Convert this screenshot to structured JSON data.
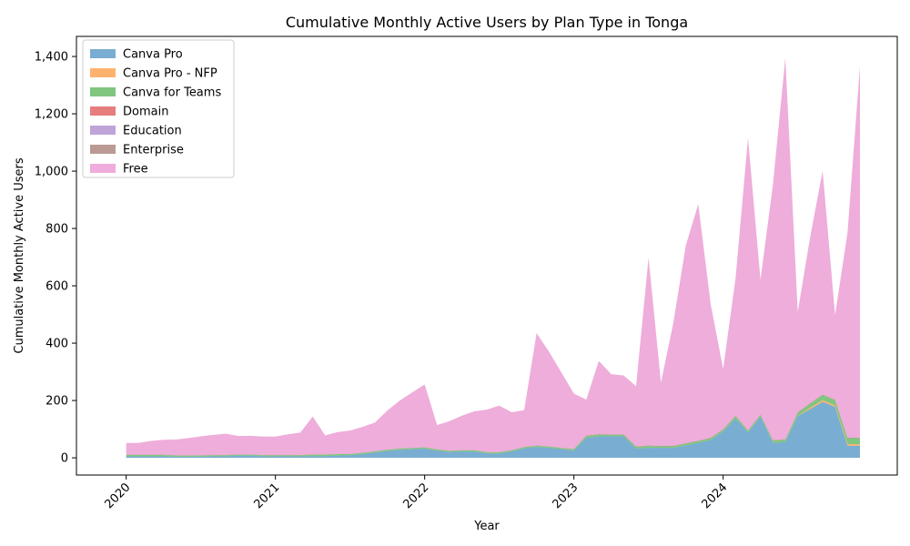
{
  "chart_data": {
    "type": "area",
    "stacked": true,
    "title": "Cumulative Monthly Active Users by Plan Type in Tonga",
    "xlabel": "Year",
    "ylabel": "Cumulative Monthly Active Users",
    "xlim": [
      "2019-09",
      "2025-03"
    ],
    "ylim": [
      -60,
      1470
    ],
    "xticks": [
      "2020",
      "2021",
      "2022",
      "2023",
      "2024"
    ],
    "yticks": [
      0,
      200,
      400,
      600,
      800,
      1000,
      1200,
      1400
    ],
    "ytick_labels": [
      "0",
      "200",
      "400",
      "600",
      "800",
      "1,000",
      "1,200",
      "1,400"
    ],
    "legend_position": "upper-left",
    "grid": false,
    "x": [
      "2020-01",
      "2020-02",
      "2020-03",
      "2020-04",
      "2020-05",
      "2020-06",
      "2020-07",
      "2020-08",
      "2020-09",
      "2020-10",
      "2020-11",
      "2020-12",
      "2021-01",
      "2021-02",
      "2021-03",
      "2021-04",
      "2021-05",
      "2021-06",
      "2021-07",
      "2021-08",
      "2021-09",
      "2021-10",
      "2021-11",
      "2021-12",
      "2022-01",
      "2022-02",
      "2022-03",
      "2022-04",
      "2022-05",
      "2022-06",
      "2022-07",
      "2022-08",
      "2022-09",
      "2022-10",
      "2022-11",
      "2022-12",
      "2023-01",
      "2023-02",
      "2023-03",
      "2023-04",
      "2023-05",
      "2023-06",
      "2023-07",
      "2023-08",
      "2023-09",
      "2023-10",
      "2023-11",
      "2023-12",
      "2024-01",
      "2024-02",
      "2024-03",
      "2024-04",
      "2024-05",
      "2024-06",
      "2024-07",
      "2024-08",
      "2024-09",
      "2024-10",
      "2024-11",
      "2024-12"
    ],
    "series": [
      {
        "name": "Canva Pro",
        "color": "#1f77b4",
        "values": [
          5,
          5,
          5,
          5,
          4,
          4,
          4,
          5,
          5,
          8,
          8,
          5,
          5,
          5,
          5,
          6,
          6,
          8,
          9,
          13,
          18,
          24,
          28,
          30,
          32,
          25,
          20,
          22,
          22,
          15,
          15,
          22,
          33,
          38,
          35,
          30,
          25,
          70,
          75,
          75,
          75,
          32,
          35,
          35,
          35,
          43,
          52,
          62,
          92,
          137,
          88,
          143,
          52,
          55,
          145,
          170,
          195,
          178,
          42,
          42
        ]
      },
      {
        "name": "Canva Pro - NFP",
        "color": "#ff7f0e",
        "values": [
          0,
          0,
          0,
          0,
          0,
          0,
          0,
          0,
          0,
          0,
          0,
          0,
          0,
          0,
          0,
          0,
          0,
          0,
          0,
          0,
          0,
          0,
          0,
          0,
          0,
          0,
          0,
          0,
          0,
          0,
          0,
          0,
          0,
          0,
          0,
          0,
          0,
          0,
          0,
          0,
          0,
          0,
          0,
          0,
          0,
          0,
          0,
          0,
          0,
          0,
          0,
          0,
          0,
          0,
          0,
          5,
          6,
          5,
          6,
          5
        ]
      },
      {
        "name": "Canva for Teams",
        "color": "#2ca02c",
        "values": [
          5,
          5,
          5,
          5,
          4,
          4,
          4,
          4,
          4,
          3,
          3,
          4,
          4,
          4,
          4,
          5,
          5,
          5,
          4,
          4,
          4,
          4,
          4,
          4,
          4,
          4,
          4,
          4,
          4,
          4,
          4,
          4,
          4,
          4,
          4,
          4,
          5,
          6,
          6,
          5,
          5,
          6,
          6,
          5,
          5,
          6,
          6,
          6,
          6,
          8,
          6,
          6,
          8,
          8,
          12,
          14,
          18,
          18,
          20,
          22
        ]
      },
      {
        "name": "Domain",
        "color": "#d62728",
        "values": [
          0,
          0,
          0,
          0,
          0,
          0,
          0,
          0,
          0,
          0,
          0,
          0,
          0,
          0,
          0,
          0,
          0,
          0,
          0,
          0,
          0,
          0,
          0,
          0,
          0,
          0,
          0,
          0,
          0,
          0,
          0,
          0,
          0,
          0,
          0,
          0,
          0,
          0,
          0,
          0,
          0,
          0,
          0,
          0,
          0,
          0,
          0,
          0,
          0,
          0,
          0,
          0,
          0,
          0,
          0,
          0,
          0,
          0,
          0,
          0
        ]
      },
      {
        "name": "Education",
        "color": "#9467bd",
        "values": [
          0,
          0,
          0,
          0,
          0,
          0,
          0,
          0,
          0,
          0,
          0,
          0,
          0,
          0,
          0,
          0,
          0,
          0,
          0,
          0,
          0,
          0,
          0,
          0,
          0,
          0,
          0,
          0,
          0,
          0,
          0,
          0,
          0,
          0,
          0,
          0,
          0,
          0,
          0,
          0,
          0,
          0,
          0,
          0,
          0,
          0,
          0,
          0,
          0,
          0,
          0,
          0,
          0,
          0,
          0,
          0,
          0,
          0,
          0,
          0
        ]
      },
      {
        "name": "Enterprise",
        "color": "#8c564b",
        "values": [
          1,
          1,
          1,
          1,
          1,
          1,
          1,
          1,
          1,
          1,
          1,
          1,
          1,
          1,
          1,
          1,
          1,
          1,
          1,
          1,
          1,
          1,
          1,
          1,
          1,
          1,
          1,
          1,
          1,
          1,
          1,
          1,
          1,
          1,
          1,
          1,
          1,
          2,
          2,
          2,
          2,
          2,
          2,
          2,
          2,
          2,
          2,
          2,
          2,
          2,
          2,
          2,
          2,
          2,
          2,
          2,
          2,
          2,
          2,
          2
        ]
      },
      {
        "name": "Free",
        "color": "#e377c2",
        "values": [
          41,
          41,
          48,
          52,
          55,
          60,
          66,
          70,
          74,
          64,
          65,
          64,
          64,
          72,
          78,
          132,
          66,
          76,
          81,
          90,
          100,
          136,
          167,
          193,
          219,
          84,
          103,
          120,
          135,
          148,
          162,
          132,
          128,
          392,
          330,
          262,
          193,
          125,
          255,
          210,
          205,
          210,
          655,
          220,
          430,
          690,
          825,
          465,
          210,
          480,
          1020,
          470,
          890,
          1330,
          350,
          580,
          780,
          295,
          715,
          1295
        ]
      }
    ]
  }
}
